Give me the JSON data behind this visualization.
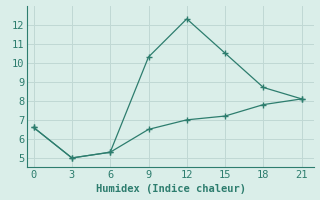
{
  "line1_x": [
    0,
    3,
    6,
    9,
    12,
    15,
    18,
    21
  ],
  "line1_y": [
    6.6,
    5.0,
    5.3,
    10.3,
    12.3,
    10.5,
    8.7,
    8.1
  ],
  "line2_x": [
    0,
    3,
    6,
    9,
    12,
    15,
    18,
    21
  ],
  "line2_y": [
    6.6,
    5.0,
    5.3,
    6.5,
    7.0,
    7.2,
    7.8,
    8.1
  ],
  "line_color": "#2d7d6e",
  "background_color": "#daeee9",
  "grid_color": "#c0d8d4",
  "xlabel": "Humidex (Indice chaleur)",
  "xlabel_color": "#2d7d6e",
  "xlabel_fontsize": 7.5,
  "xlim": [
    -0.5,
    22
  ],
  "ylim": [
    4.5,
    13
  ],
  "xticks": [
    0,
    3,
    6,
    9,
    12,
    15,
    18,
    21
  ],
  "yticks": [
    5,
    6,
    7,
    8,
    9,
    10,
    11,
    12
  ],
  "tick_color": "#2d7d6e",
  "tick_fontsize": 7.5,
  "spine_color": "#2d7d6e"
}
